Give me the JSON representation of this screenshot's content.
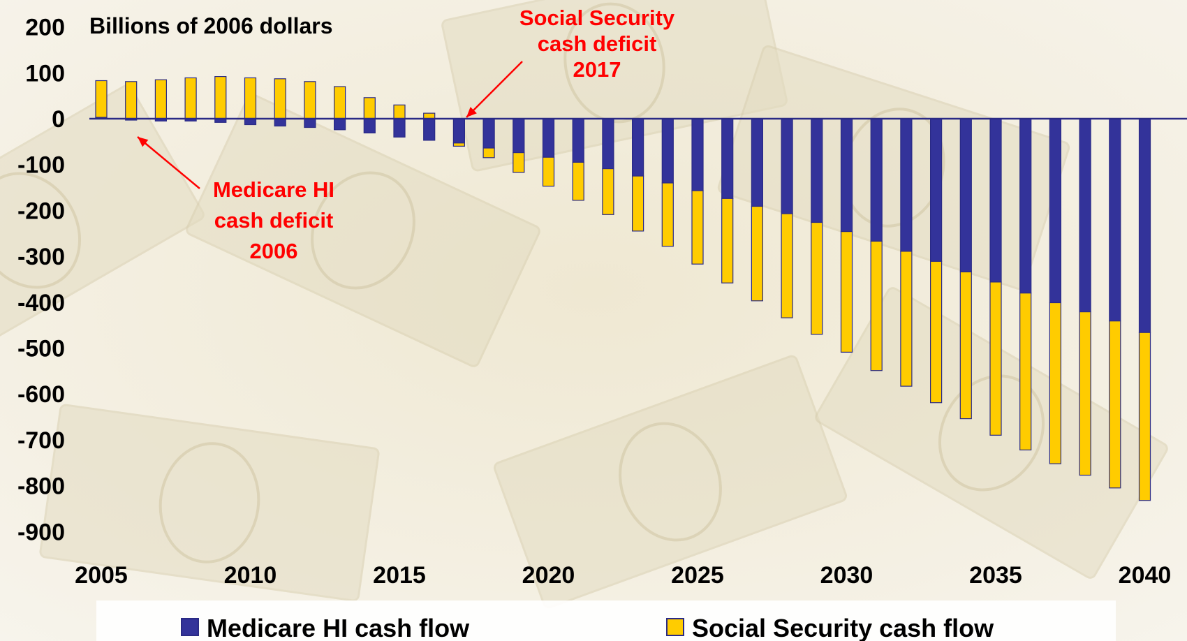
{
  "chart_data": {
    "type": "bar",
    "stacked": true,
    "y_unit_label": "Billions of 2006 dollars",
    "ylim": [
      -900,
      200
    ],
    "yticks": [
      200,
      100,
      0,
      -100,
      -200,
      -300,
      -400,
      -500,
      -600,
      -700,
      -800,
      -900
    ],
    "xticks": [
      2005,
      2010,
      2015,
      2020,
      2025,
      2030,
      2035,
      2040
    ],
    "x": [
      2005,
      2006,
      2007,
      2008,
      2009,
      2010,
      2011,
      2012,
      2013,
      2014,
      2015,
      2016,
      2017,
      2018,
      2019,
      2020,
      2021,
      2022,
      2023,
      2024,
      2025,
      2026,
      2027,
      2028,
      2029,
      2030,
      2031,
      2032,
      2033,
      2034,
      2035,
      2036,
      2037,
      2038,
      2039,
      2040
    ],
    "series": [
      {
        "name": "Medicare HI cash flow",
        "color": "#33339a",
        "values": [
          3,
          -3,
          -5,
          -5,
          -8,
          -13,
          -16,
          -19,
          -24,
          -31,
          -40,
          -47,
          -53,
          -64,
          -74,
          -84,
          -95,
          -109,
          -125,
          -140,
          -157,
          -174,
          -191,
          -207,
          -226,
          -246,
          -267,
          -289,
          -311,
          -334,
          -356,
          -380,
          -401,
          -421,
          -441,
          -466
        ]
      },
      {
        "name": "Social Security cash flow",
        "color": "#ffcc00",
        "values": [
          80,
          81,
          85,
          89,
          92,
          89,
          87,
          81,
          70,
          46,
          30,
          12,
          -7,
          -21,
          -43,
          -63,
          -83,
          -100,
          -120,
          -138,
          -160,
          -184,
          -206,
          -227,
          -244,
          -263,
          -282,
          -294,
          -308,
          -320,
          -334,
          -342,
          -351,
          -356,
          -364,
          -366
        ]
      }
    ],
    "annotations": [
      {
        "lines": [
          "Social Security",
          "cash deficit",
          "2017"
        ],
        "target_year": 2017,
        "color": "#ff0000"
      },
      {
        "lines": [
          "Medicare HI",
          "cash deficit",
          "2006"
        ],
        "target_year": 2006,
        "color": "#ff0000"
      }
    ],
    "legend": "bottom"
  }
}
